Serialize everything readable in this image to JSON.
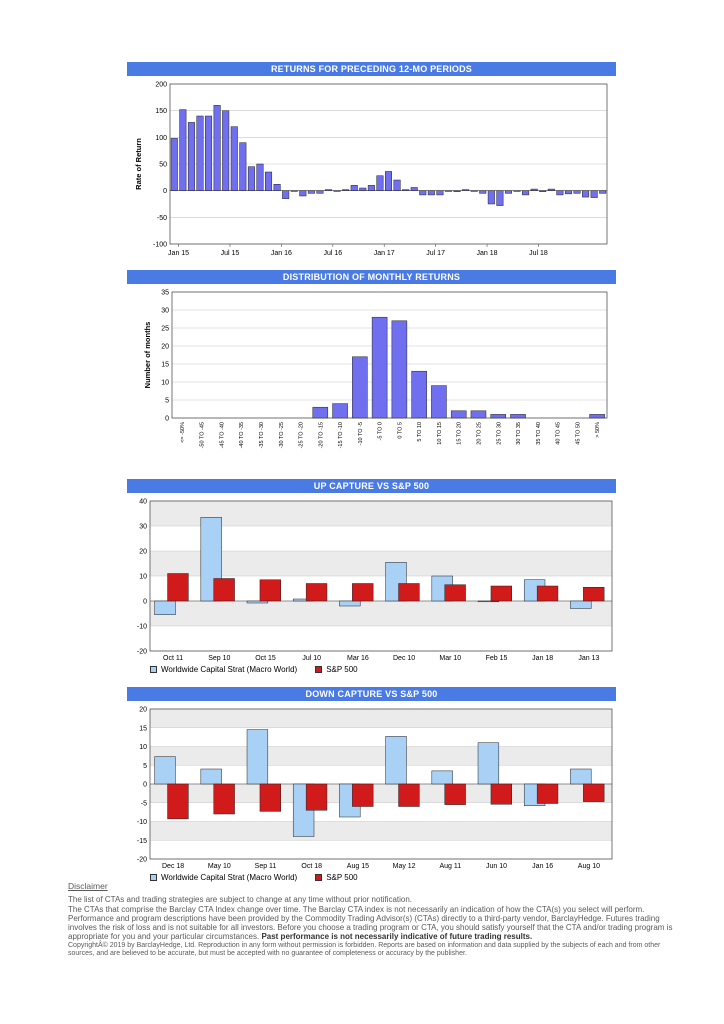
{
  "colors": {
    "accent": "#4a7be4",
    "bar_purple": "#6f6ff0",
    "bar_lightblue": "#a9d0f5",
    "bar_red": "#d11b1b"
  },
  "chart_data": [
    {
      "id": "returns",
      "type": "bar",
      "title": "RETURNS FOR PRECEDING 12-MO PERIODS",
      "ylabel": "Rate of Return",
      "ylim": [
        -100,
        200
      ],
      "yticks": [
        200,
        150,
        100,
        50,
        0,
        -50,
        -100
      ],
      "xticklabels": [
        "Jan 15",
        "Jul 15",
        "Jan 16",
        "Jul 16",
        "Jan 17",
        "Jul 17",
        "Jan 18",
        "Jul 18"
      ],
      "values": [
        98,
        152,
        128,
        140,
        140,
        160,
        150,
        120,
        90,
        45,
        50,
        35,
        12,
        -15,
        0,
        -10,
        -5,
        -5,
        2,
        0,
        2,
        10,
        5,
        10,
        28,
        36,
        20,
        2,
        6,
        -8,
        -8,
        -8,
        0,
        -2,
        2,
        0,
        -5,
        -25,
        -28,
        -5,
        0,
        -8,
        3,
        -2,
        3,
        -8,
        -6,
        -5,
        -12,
        -13,
        -5
      ],
      "legend": "none",
      "grid": true
    },
    {
      "id": "distribution",
      "type": "bar",
      "title": "DISTRIBUTION OF MONTHLY RETURNS",
      "ylabel": "Number of months",
      "ylim": [
        0,
        35
      ],
      "yticks": [
        35,
        30,
        25,
        20,
        15,
        10,
        5,
        0
      ],
      "categories": [
        "<= -50%",
        "-50 TO -45",
        "-45 TO -40",
        "-40 TO -35",
        "-35 TO -30",
        "-30 TO -25",
        "-25 TO -20",
        "-20 TO -15",
        "-15 TO -10",
        "-10 TO -5",
        "-5 TO 0",
        "0 TO 5",
        "5 TO 10",
        "10 TO 15",
        "15 TO 20",
        "20 TO 25",
        "25 TO 30",
        "30 TO 35",
        "35 TO 40",
        "40 TO 45",
        "45 TO 50",
        "> 50%"
      ],
      "values": [
        0,
        0,
        0,
        0,
        0,
        0,
        0,
        3,
        4,
        17,
        28,
        27,
        13,
        9,
        2,
        2,
        1,
        1,
        0,
        0,
        0,
        1
      ],
      "legend": "none",
      "grid": true
    },
    {
      "id": "upcapture",
      "type": "bar",
      "title": "UP CAPTURE VS S&P 500",
      "ylim": [
        -20,
        40
      ],
      "yticks": [
        40,
        30,
        20,
        10,
        0,
        -10,
        -20
      ],
      "categories": [
        "Oct 11",
        "Sep 10",
        "Oct 15",
        "Jul 10",
        "Mar 16",
        "Dec 10",
        "Mar 10",
        "Feb 15",
        "Jan 18",
        "Jan 13"
      ],
      "series": [
        {
          "name": "Worldwide Capital Strat (Macro World)",
          "values": [
            -5.5,
            33.5,
            -0.8,
            0.8,
            -2,
            15.5,
            10,
            -0.3,
            8.5,
            -3
          ]
        },
        {
          "name": "S&P 500",
          "values": [
            11,
            9,
            8.5,
            7,
            7,
            7,
            6.5,
            6,
            6,
            5.5
          ]
        }
      ],
      "legend": "bottom-left",
      "grid": true
    },
    {
      "id": "downcapture",
      "type": "bar",
      "title": "DOWN CAPTURE VS S&P 500",
      "ylim": [
        -20,
        20
      ],
      "yticks": [
        20,
        15,
        10,
        5,
        0,
        -5,
        -10,
        -15,
        -20
      ],
      "categories": [
        "Dec 18",
        "May 10",
        "Sep 11",
        "Oct 18",
        "Aug 15",
        "May 12",
        "Aug 11",
        "Jun 10",
        "Jan 16",
        "Aug 10"
      ],
      "series": [
        {
          "name": "Worldwide Capital Strat (Macro World)",
          "values": [
            7.3,
            4,
            14.5,
            -14,
            -8.8,
            12.7,
            3.5,
            11,
            -5.8,
            4
          ]
        },
        {
          "name": "S&P 500",
          "values": [
            -9.3,
            -8,
            -7.3,
            -7,
            -6,
            -6,
            -5.5,
            -5.4,
            -5.2,
            -4.7
          ]
        }
      ],
      "legend": "bottom-left",
      "grid": true
    }
  ],
  "legend": {
    "series1": "Worldwide Capital Strat (Macro World)",
    "series2": "S&P 500"
  },
  "disclaimer": {
    "title": "Disclaimer",
    "line1": "The list of CTAs and trading strategies are subject to change at any time without prior notification.",
    "line2": "The CTAs that comprise the Barclay CTA Index change over time.  The Barclay CTA index is not necessarily an indication of how the CTA(s) you select will perform.",
    "line3": "Performance and program descriptions have been provided by the Commodity Trading Advisor(s) (CTAs) directly to a third-party vendor, BarclayHedge. Futures trading involves the risk of loss and is not suitable for all investors.  Before you choose a trading program or CTA, you should satisfy yourself that the CTA and/or trading program is appropriate for you and your particular circumstances.",
    "line3_bold": "Past performance is not necessarily indicative of future trading results.",
    "copyright": "CopyrightÂ© 2019 by BarclayHedge, Ltd. Reproduction in any form without permission is forbidden. Reports are based on information and data supplied by the subjects of each and from other sources, and are believed to be accurate, but must be accepted with no guarantee of completeness or accuracy by the publisher."
  }
}
